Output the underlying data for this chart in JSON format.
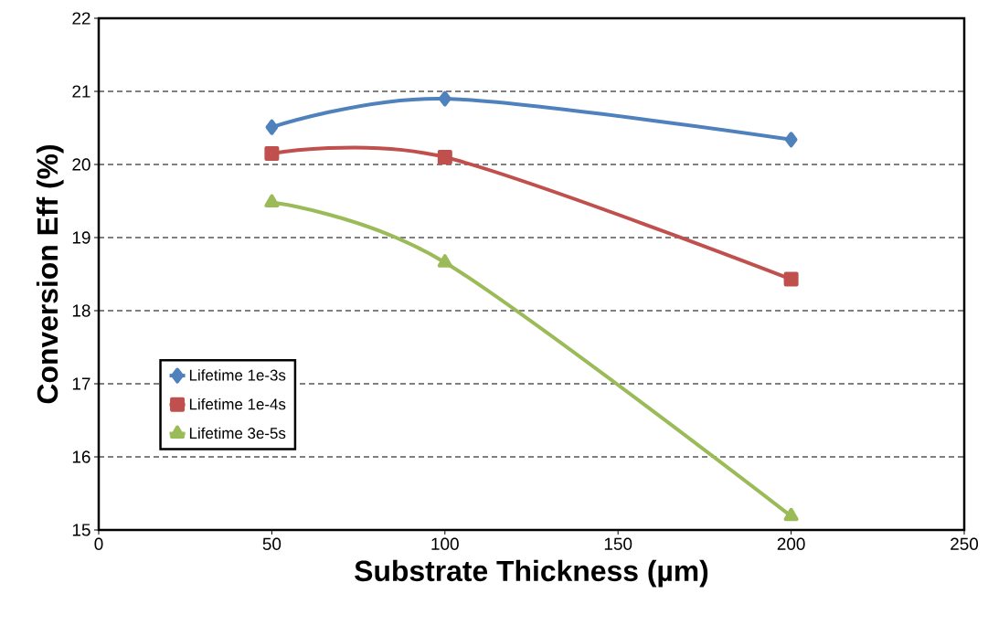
{
  "chart_data": {
    "type": "line",
    "xlabel": "Substrate Thickness (µm)",
    "ylabel": "Conversion Eff (%)",
    "x": [
      50,
      100,
      200
    ],
    "series": [
      {
        "name": "Lifetime 1e-3s",
        "color": "#4f81bd",
        "marker": "diamond",
        "values": [
          20.51,
          20.9,
          20.34
        ]
      },
      {
        "name": "Lifetime 1e-4s",
        "color": "#c0504d",
        "marker": "square",
        "values": [
          20.15,
          20.1,
          18.43
        ]
      },
      {
        "name": "Lifetime 3e-5s",
        "color": "#9bbb59",
        "marker": "triangle",
        "values": [
          19.48,
          18.66,
          15.19
        ]
      }
    ],
    "xlim": [
      0,
      250
    ],
    "xticks": [
      0,
      50,
      100,
      150,
      200,
      250
    ],
    "ylim": [
      15,
      22
    ],
    "yticks": [
      15,
      16,
      17,
      18,
      19,
      20,
      21,
      22
    ],
    "grid": "y",
    "legend": "left",
    "line_style": "solid"
  }
}
